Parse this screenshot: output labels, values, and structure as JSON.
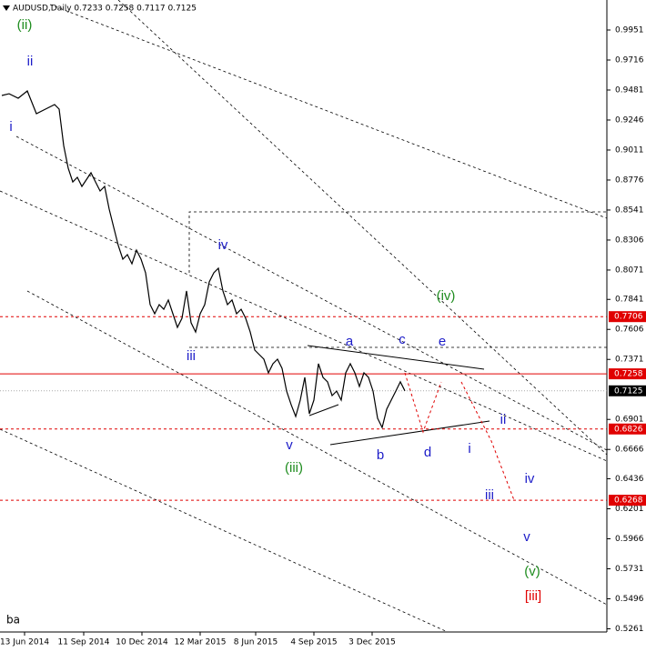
{
  "chart_data": {
    "type": "line",
    "title": "AUDUSD,Daily  0.7233 0.7258 0.7117 0.7125",
    "color": "#000000",
    "x": [
      2,
      10,
      20,
      30,
      40,
      50,
      60,
      65,
      70,
      75,
      80,
      85,
      90,
      100,
      105,
      110,
      115,
      120,
      125,
      130,
      135,
      140,
      145,
      150,
      155,
      160,
      165,
      170,
      175,
      180,
      185,
      190,
      195,
      200,
      205,
      210,
      215,
      220,
      225,
      230,
      235,
      240,
      245,
      250,
      255,
      260,
      265,
      270,
      275,
      280,
      285,
      290,
      295,
      300,
      305,
      310,
      315,
      320,
      325,
      330,
      335,
      340,
      345,
      350,
      355,
      360,
      365,
      370,
      375,
      380,
      385,
      390,
      395,
      400,
      405,
      410,
      415,
      420,
      425,
      430,
      435,
      440,
      445
    ],
    "values": [
      0.9438,
      0.9452,
      0.9417,
      0.9474,
      0.9296,
      0.9331,
      0.9367,
      0.9331,
      0.9046,
      0.8868,
      0.8761,
      0.8797,
      0.8726,
      0.8833,
      0.8761,
      0.869,
      0.8726,
      0.8548,
      0.8405,
      0.8263,
      0.8156,
      0.8192,
      0.812,
      0.8227,
      0.8156,
      0.8049,
      0.78,
      0.7729,
      0.78,
      0.7764,
      0.7836,
      0.7729,
      0.7622,
      0.7693,
      0.7907,
      0.7658,
      0.7586,
      0.7729,
      0.78,
      0.7978,
      0.8049,
      0.8085,
      0.7907,
      0.78,
      0.7836,
      0.7729,
      0.7764,
      0.7693,
      0.7586,
      0.7444,
      0.7408,
      0.7373,
      0.7266,
      0.7337,
      0.7373,
      0.7301,
      0.7123,
      0.7016,
      0.6924,
      0.7052,
      0.723,
      0.6945,
      0.7052,
      0.7337,
      0.723,
      0.7195,
      0.7088,
      0.7123,
      0.7052,
      0.7266,
      0.7337,
      0.7266,
      0.7159,
      0.7266,
      0.723,
      0.7123,
      0.691,
      0.6838,
      0.6981,
      0.7052,
      0.7123,
      0.7195,
      0.7125
    ],
    "xlim": [
      0,
      667
    ],
    "ylim": [
      0.5236,
      1.0186
    ],
    "yticks": [
      0.9951,
      0.9716,
      0.9481,
      0.9246,
      0.9011,
      0.8776,
      0.8541,
      0.8306,
      0.8071,
      0.7841,
      0.7606,
      0.7371,
      0.6901,
      0.6666,
      0.6436,
      0.6201,
      0.5966,
      0.5731,
      0.5496,
      0.5261
    ],
    "xticks": [
      {
        "value": 27,
        "label": "13 Jun 2014"
      },
      {
        "value": 92,
        "label": "11 Sep 2014"
      },
      {
        "value": 156,
        "label": "10 Dec 2014"
      },
      {
        "value": 220,
        "label": "12 Mar 2015"
      },
      {
        "value": 281,
        "label": "8 Jun 2015"
      },
      {
        "value": 345,
        "label": "4 Sep 2015"
      },
      {
        "value": 409,
        "label": "3 Dec 2015"
      }
    ],
    "levels": [
      {
        "value": 0.7706,
        "color": "#e00000",
        "style": "dashed"
      },
      {
        "value": 0.7258,
        "color": "#e00000",
        "style": "solid"
      },
      {
        "value": 0.6826,
        "color": "#e00000",
        "style": "dashed"
      },
      {
        "value": 0.6268,
        "color": "#e00000",
        "style": "dashed"
      }
    ],
    "current_price": 0.7125,
    "annotations": [
      {
        "text": "(ii)",
        "color": "#1e8c1e"
      },
      {
        "text": "ii",
        "color": "#1c1cc8"
      },
      {
        "text": "i",
        "color": "#1c1cc8"
      },
      {
        "text": "iv",
        "color": "#1c1cc8"
      },
      {
        "text": "iii",
        "color": "#1c1cc8"
      },
      {
        "text": "v",
        "color": "#1c1cc8"
      },
      {
        "text": "(iii)",
        "color": "#1e8c1e"
      },
      {
        "text": "a",
        "color": "#1c1cc8"
      },
      {
        "text": "c",
        "color": "#1c1cc8"
      },
      {
        "text": "e",
        "color": "#1c1cc8"
      },
      {
        "text": "(iv)",
        "color": "#1e8c1e"
      },
      {
        "text": "b",
        "color": "#1c1cc8"
      },
      {
        "text": "d",
        "color": "#1c1cc8"
      },
      {
        "text": "ii",
        "color": "#1c1cc8"
      },
      {
        "text": "i",
        "color": "#1c1cc8"
      },
      {
        "text": "iii",
        "color": "#1c1cc8"
      },
      {
        "text": "iv",
        "color": "#1c1cc8"
      },
      {
        "text": "v",
        "color": "#1c1cc8"
      },
      {
        "text": "(v)",
        "color": "#1e8c1e"
      },
      {
        "text": "[iii]",
        "color": "#e00000"
      }
    ],
    "footer_label": "ba"
  }
}
